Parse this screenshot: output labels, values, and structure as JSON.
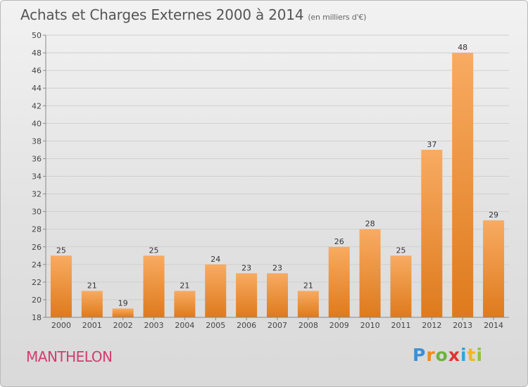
{
  "header": {
    "title": "Achats et Charges Externes 2000 à 2014",
    "subtitle": "(en milliers d'€)"
  },
  "footer": {
    "commune": "MANTHELON",
    "logo": "Proxiti"
  },
  "colors": {
    "bar_light": "#f7a65a",
    "bar_dark": "#e07c1e",
    "commune": "#d23c6e",
    "grid": "#cccccc"
  },
  "chart_data": {
    "type": "bar",
    "title": "Achats et Charges Externes 2000 à 2014",
    "subtitle": "(en milliers d'€)",
    "categories": [
      "2000",
      "2001",
      "2002",
      "2003",
      "2004",
      "2005",
      "2006",
      "2007",
      "2008",
      "2009",
      "2010",
      "2011",
      "2012",
      "2013",
      "2014"
    ],
    "values": [
      25,
      21,
      19,
      25,
      21,
      24,
      23,
      23,
      21,
      26,
      28,
      25,
      37,
      48,
      29
    ],
    "ylim": [
      18,
      50
    ],
    "yticks": [
      18,
      20,
      22,
      24,
      26,
      28,
      30,
      32,
      34,
      36,
      38,
      40,
      42,
      44,
      46,
      48,
      50
    ],
    "grid": true,
    "data_labels": true
  }
}
